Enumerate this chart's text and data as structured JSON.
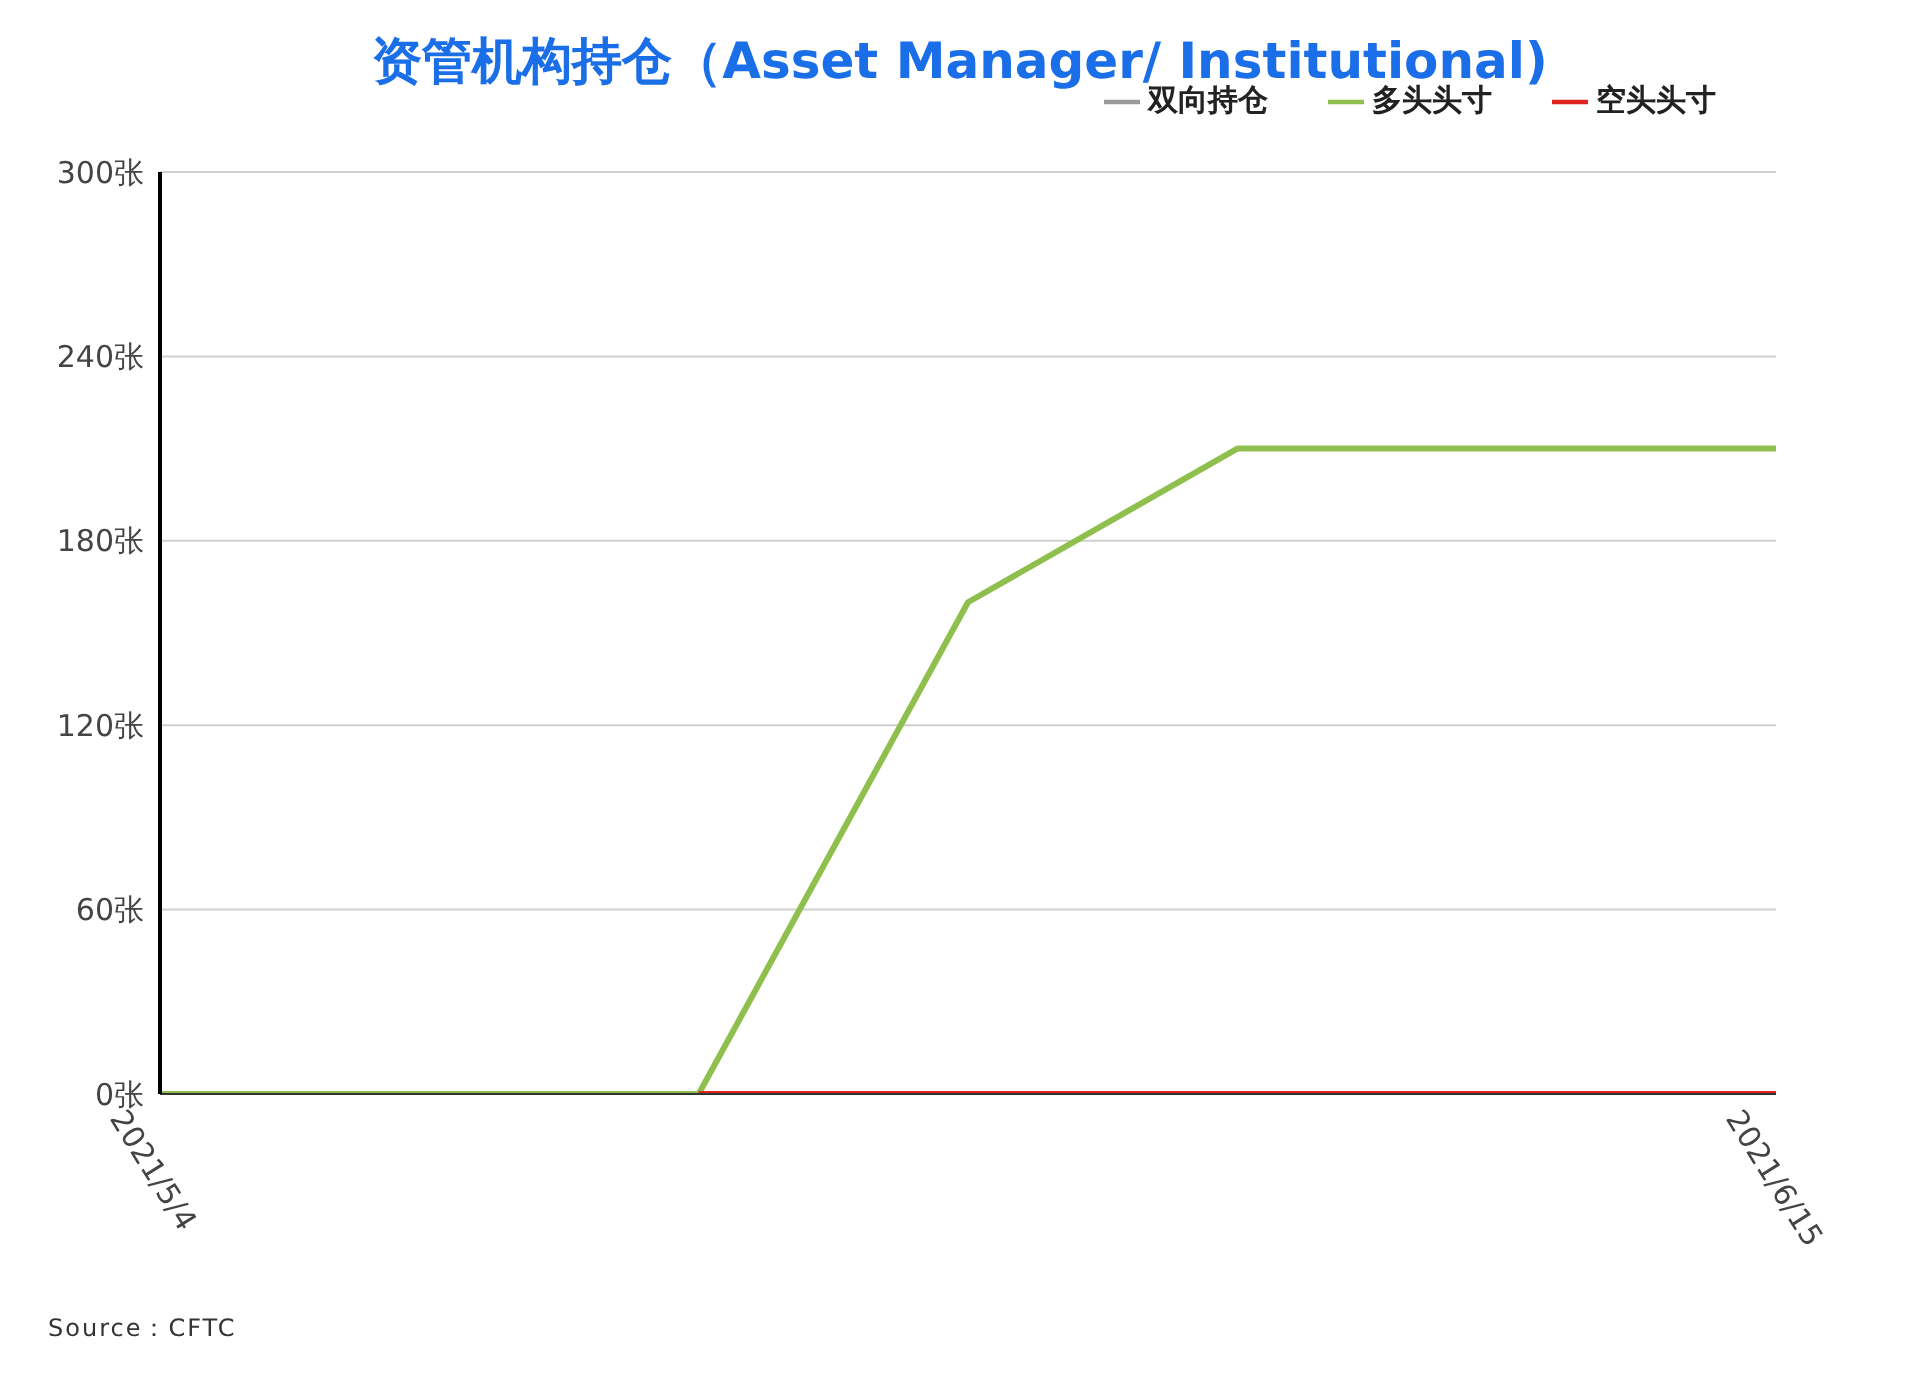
{
  "chart_data": {
    "type": "line",
    "title": "资管机构持仓（Asset Manager/ Institutional)",
    "categories": [
      "2021/5/4",
      null,
      null,
      null,
      null,
      null,
      "2021/6/15"
    ],
    "series": [
      {
        "name": "多头头寸",
        "color": "#8fbf4d",
        "values": [
          0,
          0,
          0,
          160,
          210,
          210,
          210
        ]
      },
      {
        "name": "空头头寸",
        "color": "#e0231c",
        "values": [
          null,
          null,
          0,
          0,
          0,
          0,
          0
        ]
      },
      {
        "name": "双向持仓",
        "color": "#9a9a9a",
        "values": [
          null,
          null,
          null,
          null,
          null,
          null,
          null
        ]
      }
    ],
    "ylim": [
      0,
      300
    ],
    "yticks": [
      {
        "value": 0,
        "label": "0张"
      },
      {
        "value": 60,
        "label": "60张"
      },
      {
        "value": 120,
        "label": "120张"
      },
      {
        "value": 180,
        "label": "180张"
      },
      {
        "value": 240,
        "label": "240张"
      },
      {
        "value": 300,
        "label": "300张"
      }
    ],
    "grid": "y",
    "legend": "top right",
    "marker": "none",
    "line_style": "solid",
    "annotations": [
      "Source：CFTC"
    ]
  }
}
